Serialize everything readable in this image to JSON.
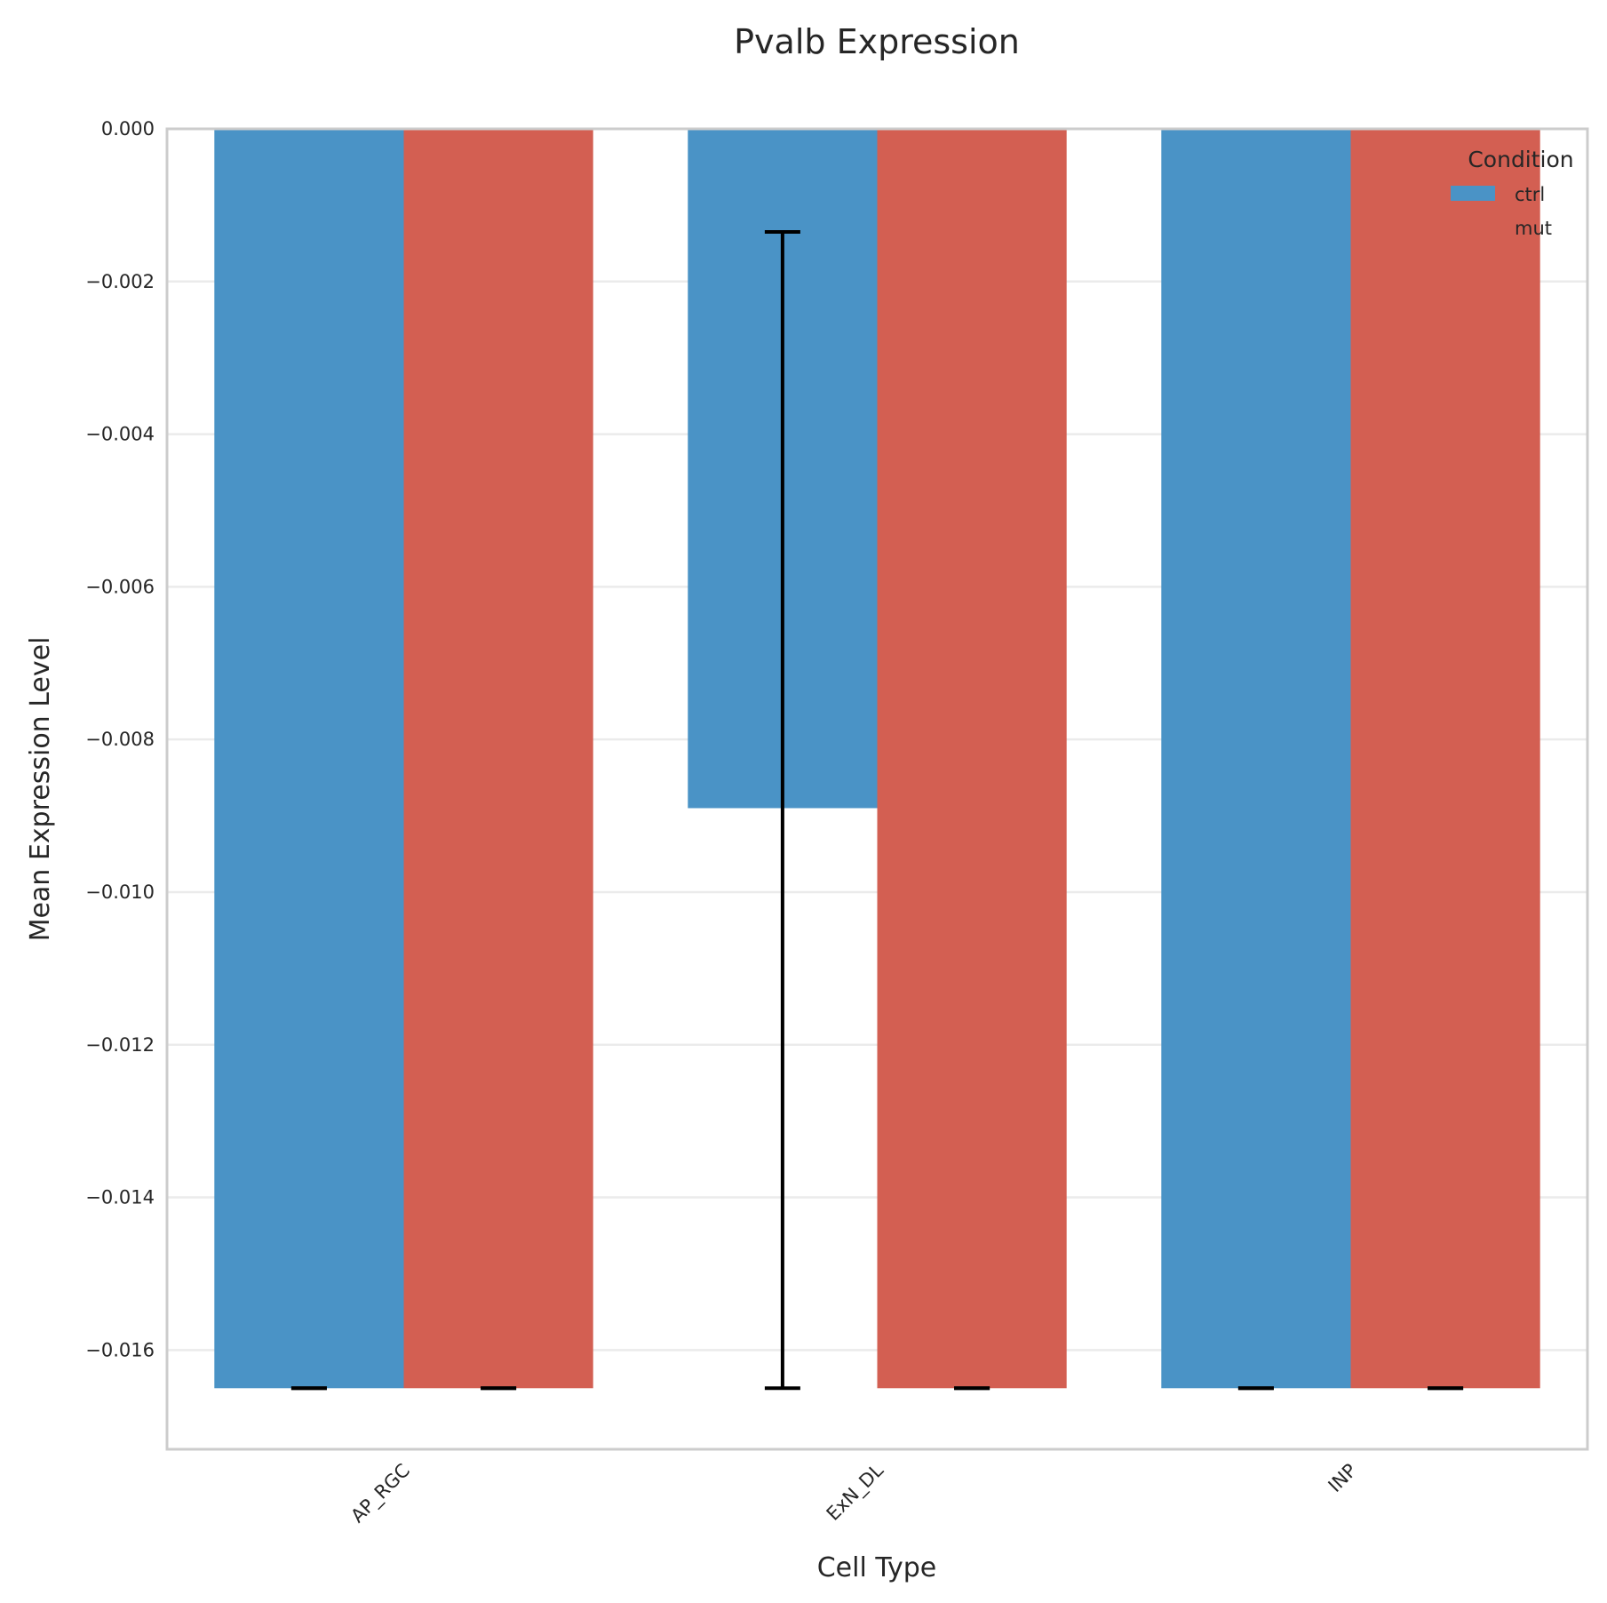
{
  "chart_data": {
    "type": "bar",
    "title": "Pvalb Expression",
    "xlabel": "Cell Type",
    "ylabel": "Mean Expression Level",
    "categories": [
      "AP_RGC",
      "ExN_DL",
      "INP"
    ],
    "series": [
      {
        "name": "ctrl",
        "color": "#4a93c6",
        "values": [
          -0.0165,
          -0.0089,
          -0.0165
        ],
        "error_low": [
          -0.0165,
          -0.0165,
          -0.0165
        ],
        "error_high": [
          -0.0165,
          -0.00135,
          -0.0165
        ]
      },
      {
        "name": "mut",
        "color": "#d35f52",
        "values": [
          -0.0165,
          -0.0165,
          -0.0165
        ],
        "error_low": [
          -0.0165,
          -0.0165,
          -0.0165
        ],
        "error_high": [
          -0.0165,
          -0.0165,
          -0.0165
        ]
      }
    ],
    "ylim": [
      -0.0173,
      0.0
    ],
    "yticks": [
      0.0,
      -0.002,
      -0.004,
      -0.006,
      -0.008,
      -0.01,
      -0.012,
      -0.014,
      -0.016
    ],
    "ytick_labels": [
      "0.000",
      "−0.002",
      "−0.004",
      "−0.006",
      "−0.008",
      "−0.010",
      "−0.012",
      "−0.014",
      "−0.016"
    ],
    "grid": "y",
    "legend": {
      "title": "Condition",
      "placement": "top-right"
    }
  }
}
